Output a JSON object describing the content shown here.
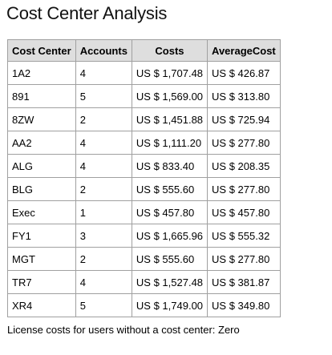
{
  "page": {
    "title": "Cost Center Analysis",
    "footnote": "License costs for users without a cost center: Zero"
  },
  "table": {
    "headers": [
      "Cost Center",
      "Accounts",
      "Costs",
      "AverageCost"
    ],
    "rows": [
      [
        "1A2",
        "4",
        "US $ 1,707.48",
        "US $ 426.87"
      ],
      [
        "891",
        "5",
        "US $ 1,569.00",
        "US $ 313.80"
      ],
      [
        "8ZW",
        "2",
        "US $ 1,451.88",
        "US $ 725.94"
      ],
      [
        "AA2",
        "4",
        "US $ 1,111.20",
        "US $ 277.80"
      ],
      [
        "ALG",
        "4",
        "US $ 833.40",
        "US $ 208.35"
      ],
      [
        "BLG",
        "2",
        "US $ 555.60",
        "US $ 277.80"
      ],
      [
        "Exec",
        "1",
        "US $ 457.80",
        "US $ 457.80"
      ],
      [
        "FY1",
        "3",
        "US $ 1,665.96",
        "US $ 555.32"
      ],
      [
        "MGT",
        "2",
        "US $ 555.60",
        "US $ 277.80"
      ],
      [
        "TR7",
        "4",
        "US $ 1,527.48",
        "US $ 381.87"
      ],
      [
        "XR4",
        "5",
        "US $ 1,749.00",
        "US $ 349.80"
      ]
    ]
  },
  "colors": {
    "header_background": "#dedede",
    "border": "#a0a0a0"
  }
}
